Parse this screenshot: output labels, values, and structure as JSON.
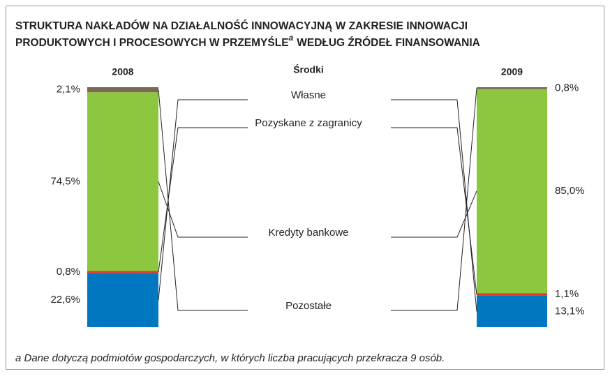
{
  "chart_data": {
    "type": "bar",
    "stacked": true,
    "title": [
      "STRUKTURA NAKŁADÓW NA DZIAŁALNOŚĆ INNOWACYJNĄ W ZAKRESIE INNOWACJI",
      "PRODUKTOWYCH I PROCESOWYCH W PRZEMYŚLE",
      "WEDŁUG ŹRÓDEŁ FINANSOWANIA"
    ],
    "title_note_marker": "a",
    "legend_title": "Środki",
    "categories": [
      "2008",
      "2009"
    ],
    "series": [
      {
        "name": "Własne",
        "color": "#0077c0",
        "values": [
          22.6,
          13.1
        ],
        "value_labels": [
          "22,6%",
          "13,1%"
        ]
      },
      {
        "name": "Pozyskane z zagranicy",
        "color": "#e03c28",
        "values": [
          0.8,
          1.1
        ],
        "value_labels": [
          "0,8%",
          "1,1%"
        ]
      },
      {
        "name": "Kredyty bankowe",
        "color": "#8dc63f",
        "values": [
          74.5,
          85.0
        ],
        "value_labels": [
          "74,5%",
          "85,0%"
        ]
      },
      {
        "name": "Pozostałe",
        "color": "#7a6a50",
        "values": [
          2.1,
          0.8
        ],
        "value_labels": [
          "2,1%",
          "0,8%"
        ]
      }
    ],
    "ylim": [
      0,
      100
    ],
    "footnote": "a Dane dotyczą podmiotów gospodarczych, w których liczba pracujących przekracza 9 osób."
  }
}
